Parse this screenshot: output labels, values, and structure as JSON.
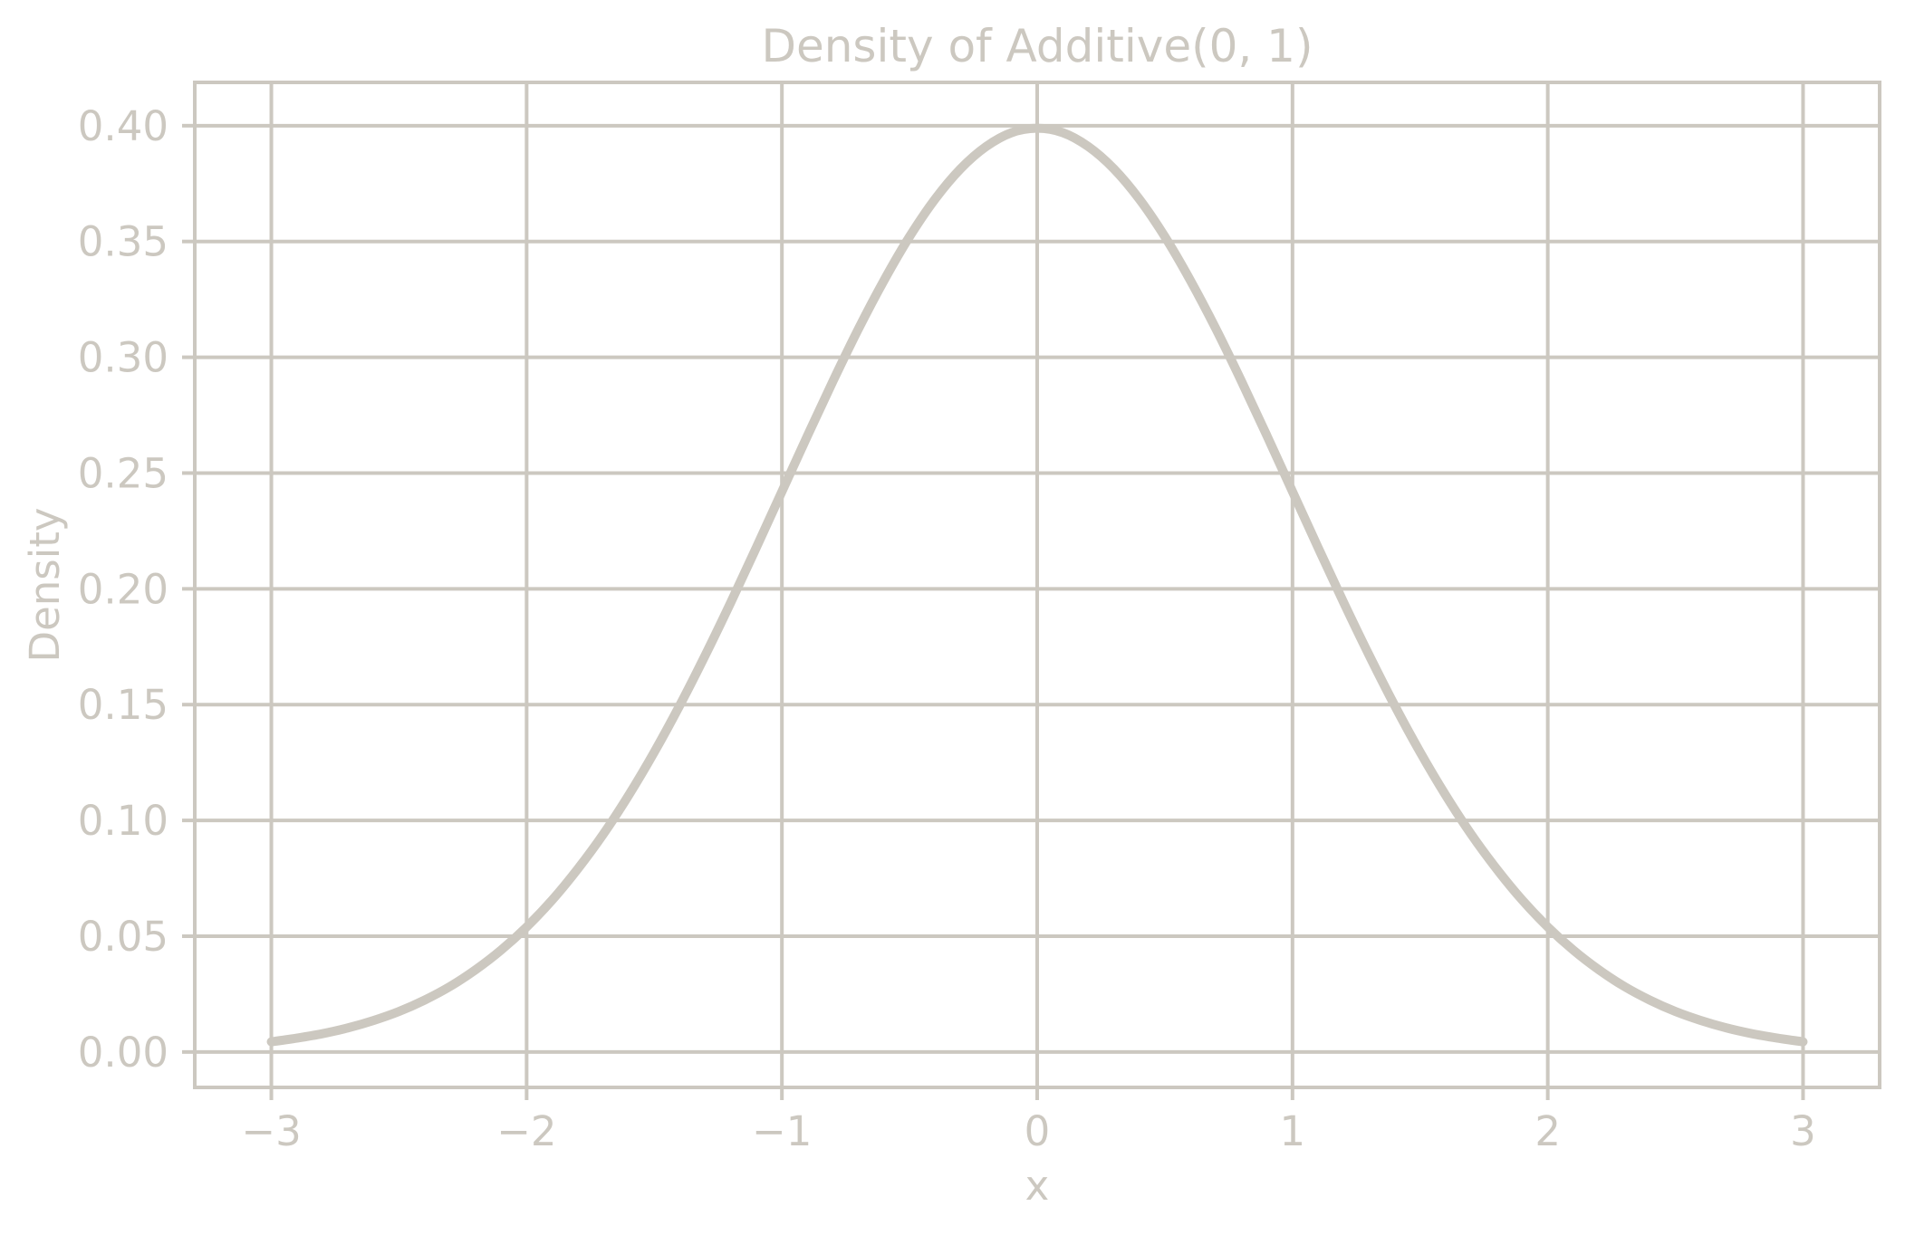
{
  "colors": {
    "foreground": "#ccc8c0",
    "background": "#ffffff"
  },
  "chart_data": {
    "type": "line",
    "title": "Density of Additive(0, 1)",
    "xlabel": "x",
    "ylabel": "Density",
    "xlim": [
      -3.3,
      3.3
    ],
    "ylim": [
      -0.0153,
      0.4187
    ],
    "x_ticks": [
      -3,
      -2,
      -1,
      0,
      1,
      2,
      3
    ],
    "x_tick_labels": [
      "−3",
      "−2",
      "−1",
      "0",
      "1",
      "2",
      "3"
    ],
    "y_ticks": [
      0.0,
      0.05,
      0.1,
      0.15,
      0.2,
      0.25,
      0.3,
      0.35,
      0.4
    ],
    "y_tick_labels": [
      "0.00",
      "0.05",
      "0.10",
      "0.15",
      "0.20",
      "0.25",
      "0.30",
      "0.35",
      "0.40"
    ],
    "grid": true,
    "line_width": 10,
    "series": [
      {
        "name": "Additive(0, 1)",
        "x": [
          -3.0,
          -2.9,
          -2.8,
          -2.7,
          -2.6,
          -2.5,
          -2.4,
          -2.3,
          -2.2,
          -2.1,
          -2.0,
          -1.9,
          -1.8,
          -1.7,
          -1.6,
          -1.5,
          -1.4,
          -1.3,
          -1.2,
          -1.1,
          -1.0,
          -0.9,
          -0.8,
          -0.7,
          -0.6,
          -0.5,
          -0.4,
          -0.3,
          -0.2,
          -0.1,
          0.0,
          0.1,
          0.2,
          0.3,
          0.4,
          0.5,
          0.6,
          0.7,
          0.8,
          0.9,
          1.0,
          1.1,
          1.2,
          1.3,
          1.4,
          1.5,
          1.6,
          1.7,
          1.8,
          1.9,
          2.0,
          2.1,
          2.2,
          2.3,
          2.4,
          2.5,
          2.6,
          2.7,
          2.8,
          2.9,
          3.0
        ],
        "y": [
          0.0044,
          0.006,
          0.0079,
          0.0104,
          0.0136,
          0.0175,
          0.0224,
          0.0283,
          0.0355,
          0.044,
          0.054,
          0.0656,
          0.079,
          0.094,
          0.1109,
          0.1295,
          0.1497,
          0.1714,
          0.1942,
          0.2179,
          0.242,
          0.2661,
          0.2897,
          0.3123,
          0.3332,
          0.3521,
          0.3683,
          0.3814,
          0.391,
          0.397,
          0.3989,
          0.397,
          0.391,
          0.3814,
          0.3683,
          0.3521,
          0.3332,
          0.3123,
          0.2897,
          0.2661,
          0.242,
          0.2179,
          0.1942,
          0.1714,
          0.1497,
          0.1295,
          0.1109,
          0.094,
          0.079,
          0.0656,
          0.054,
          0.044,
          0.0355,
          0.0283,
          0.0224,
          0.0175,
          0.0136,
          0.0104,
          0.0079,
          0.006,
          0.0044
        ]
      }
    ]
  }
}
